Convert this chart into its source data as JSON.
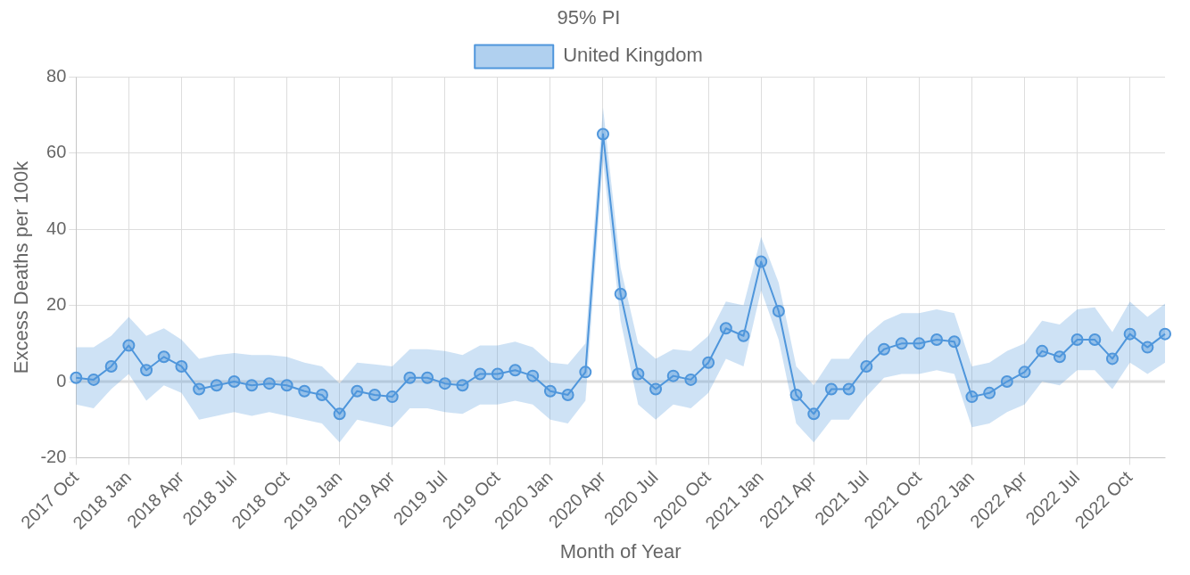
{
  "chart_data": {
    "type": "line",
    "title": "95% PI",
    "xlabel": "Month of Year",
    "ylabel": "Excess Deaths per 100k",
    "categories": [
      "2017 Oct",
      null,
      null,
      "2018 Jan",
      null,
      null,
      "2018 Apr",
      null,
      null,
      "2018 Jul",
      null,
      null,
      "2018 Oct",
      null,
      null,
      "2019 Jan",
      null,
      null,
      "2019 Apr",
      null,
      null,
      "2019 Jul",
      null,
      null,
      "2019 Oct",
      null,
      null,
      "2020 Jan",
      null,
      null,
      "2020 Apr",
      null,
      null,
      "2020 Jul",
      null,
      null,
      "2020 Oct",
      null,
      null,
      "2021 Jan",
      null,
      null,
      "2021 Apr",
      null,
      null,
      "2021 Jul",
      null,
      null,
      "2021 Oct",
      null,
      null,
      "2022 Jan",
      null,
      null,
      "2022 Apr",
      null,
      null,
      "2022 Jul",
      null,
      null,
      "2022 Oct",
      null,
      null
    ],
    "series": [
      {
        "name": "United Kingdom",
        "color": "#4f96dc",
        "values": [
          1,
          0.5,
          4,
          9.5,
          3,
          6.5,
          4,
          -2,
          -1,
          0,
          -1,
          -0.5,
          -1,
          -2.5,
          -3.5,
          -8.5,
          -2.5,
          -3.5,
          -4,
          1,
          1,
          -0.5,
          -1,
          2,
          2,
          3,
          1.5,
          -2.5,
          -3.5,
          2.5,
          65,
          23,
          2,
          -2,
          1.5,
          0.5,
          5,
          14,
          12,
          31.5,
          18.5,
          -3.5,
          -8.5,
          -2,
          -2,
          4,
          8.5,
          10,
          10,
          11,
          10.5,
          -4,
          -3,
          0,
          2.5,
          8,
          6.5,
          11,
          11,
          6,
          12.5,
          9,
          12.5
        ],
        "lower": [
          -6,
          -7,
          -2,
          2,
          -5,
          -1,
          -3,
          -10,
          -9,
          -8,
          -9,
          -8,
          -9,
          -10,
          -11,
          -16,
          -10,
          -11,
          -12,
          -7,
          -7,
          -8,
          -8.5,
          -6,
          -6,
          -5,
          -6,
          -10,
          -11,
          -5,
          58,
          16,
          -6,
          -10,
          -6,
          -7,
          -3,
          6,
          4,
          24,
          11,
          -11,
          -16,
          -10,
          -10,
          -4,
          1,
          2,
          2,
          3,
          2,
          -12,
          -11,
          -8,
          -6,
          0,
          -1,
          3,
          3,
          -2,
          5,
          2,
          5
        ],
        "upper": [
          9,
          9,
          12,
          17,
          12,
          14,
          11,
          6,
          7,
          7.5,
          7,
          7,
          6.5,
          5,
          4,
          -0.5,
          5,
          4.5,
          4,
          8.5,
          8.5,
          8,
          7,
          9.5,
          9.5,
          10.5,
          9,
          5,
          4.5,
          10,
          72,
          30,
          10,
          6,
          8.5,
          8,
          12,
          21,
          20,
          38,
          26,
          4,
          -1,
          6,
          6,
          12,
          16,
          18,
          18,
          19,
          18,
          4,
          5,
          8,
          10,
          16,
          15,
          19,
          19.5,
          13,
          21,
          17,
          20.5
        ]
      }
    ],
    "ylim": [
      -20,
      80
    ],
    "yticks": [
      -20,
      0,
      20,
      40,
      60,
      80
    ],
    "grid": true,
    "legend": "top",
    "marker": "circle",
    "line_style": "solid",
    "ref_lines": [
      {
        "axis": "y",
        "value": 0,
        "color": "#dddddd"
      }
    ]
  }
}
